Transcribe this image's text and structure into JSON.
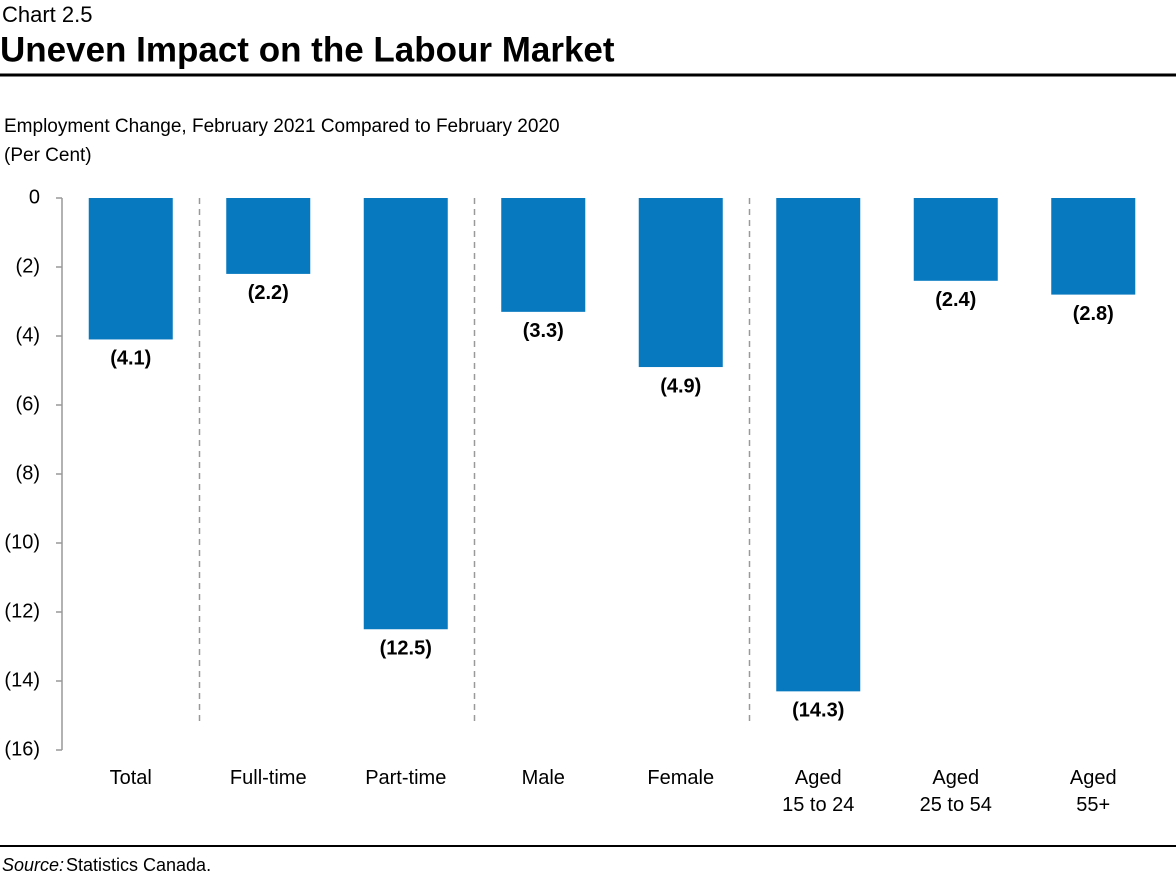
{
  "chart_data": {
    "type": "bar",
    "chart_label": "Chart 2.5",
    "title": "Uneven Impact on the Labour Market",
    "subtitle": "Employment Change, February 2021 Compared to February 2020",
    "y_label": "(Per Cent)",
    "categories": [
      "Total",
      "Full-time",
      "Part-time",
      "Male",
      "Female",
      "Aged\n15 to 24",
      "Aged\n25 to 54",
      "Aged\n55+"
    ],
    "values": [
      -4.1,
      -2.2,
      -12.5,
      -3.3,
      -4.9,
      -14.3,
      -2.4,
      -2.8
    ],
    "value_labels": [
      "(4.1)",
      "(2.2)",
      "(12.5)",
      "(3.3)",
      "(4.9)",
      "(14.3)",
      "(2.4)",
      "(2.8)"
    ],
    "color": "#0779bf",
    "ylim": [
      -16,
      0
    ],
    "yticks": [
      0,
      {
        "value": -2,
        "label": "(2)"
      },
      {
        "value": -4,
        "label": "(4)"
      },
      {
        "value": -6,
        "label": "(6)"
      },
      {
        "value": -8,
        "label": "(8)"
      },
      {
        "value": -10,
        "label": "(10)"
      },
      {
        "value": -12,
        "label": "(12)"
      },
      {
        "value": -14,
        "label": "(14)"
      },
      {
        "value": -16,
        "label": "(16)"
      }
    ],
    "grid": false,
    "source_label": "Source:",
    "source": "Statistics Canada."
  }
}
